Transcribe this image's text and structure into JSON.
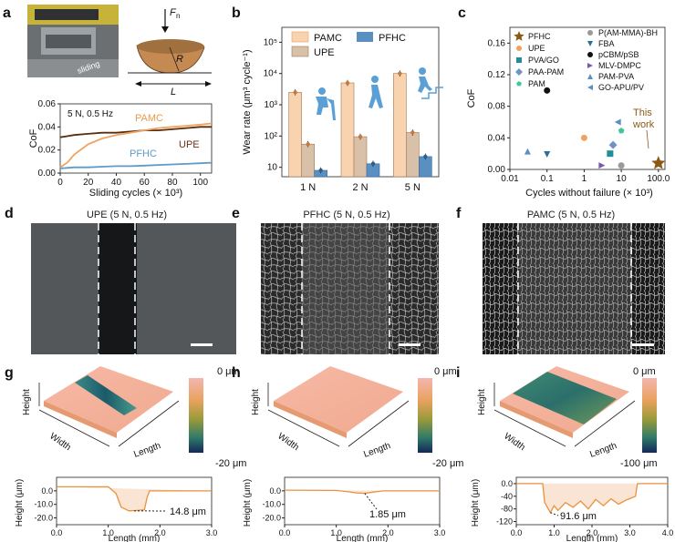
{
  "panels": {
    "a": {
      "letter": "a",
      "force_label": "F",
      "force_sub": "n",
      "radius_label": "R",
      "length_label": "L",
      "photo_label": "sliding",
      "condition": "5 N, 0.5 Hz",
      "ylabel": "CoF",
      "xlabel": "Sliding cycles (× 10³)",
      "xticks": [
        "0",
        "20",
        "40",
        "60",
        "80",
        "100"
      ],
      "yticks": [
        "0.00",
        "0.02",
        "0.04",
        "0.06"
      ],
      "series_labels": {
        "PAMC": "PAMC",
        "UPE": "UPE",
        "PFHC": "PFHC"
      }
    },
    "b": {
      "letter": "b",
      "ylabel": "Wear rate (μm³ cycle⁻¹)",
      "legend": [
        "PAMC",
        "PFHC",
        "UPE"
      ],
      "categories": [
        "1 N",
        "2 N",
        "5 N"
      ],
      "yticks": [
        "10",
        "10²",
        "10³",
        "10⁴",
        "10⁵"
      ]
    },
    "c": {
      "letter": "c",
      "ylabel": "CoF",
      "xlabel": "Cycles without failure (× 10³)",
      "xticks": [
        "0.01",
        "0.1",
        "1",
        "10",
        "100.0"
      ],
      "yticks": [
        "0.00",
        "0.04",
        "0.08",
        "0.12",
        "0.16"
      ],
      "legend_left": [
        "PFHC",
        "UPE",
        "PVA/GO",
        "PAA-PAM",
        "PAM"
      ],
      "legend_right": [
        "P(AM-MMA)-BH",
        "FBA",
        "pCBM/pSB",
        "MLV-DMPC",
        "PAM-PVA",
        "GO-APU/PV"
      ],
      "annotation_line1": "This",
      "annotation_line2": "work"
    },
    "d": {
      "letter": "d",
      "title": "UPE (5 N, 0.5 Hz)"
    },
    "e": {
      "letter": "e",
      "title": "PFHC (5 N, 0.5 Hz)"
    },
    "f": {
      "letter": "f",
      "title": "PAMC (5 N, 0.5 Hz)"
    },
    "g": {
      "letter": "g",
      "height": "Height",
      "width": "Width",
      "length": "Length",
      "cb_top": "0 μm",
      "cb_bottom": "-20 μm",
      "pylabel": "Height (μm)",
      "pxlabel": "Length (mm)",
      "pyticks": [
        "0.0",
        "-10.0",
        "-20.0"
      ],
      "pxticks": [
        "0.0",
        "1.0",
        "2.0",
        "3.0"
      ],
      "depth": "14.8 μm"
    },
    "h": {
      "letter": "h",
      "height": "Height",
      "width": "Width",
      "length": "Length",
      "cb_top": "0 μm",
      "cb_bottom": "-20 μm",
      "pylabel": "Height (μm)",
      "pxlabel": "Length (mm)",
      "pyticks": [
        "0.0",
        "-10.0",
        "-20.0"
      ],
      "pxticks": [
        "0.0",
        "1.0",
        "2.0",
        "3.0"
      ],
      "depth": "1.85 μm"
    },
    "i": {
      "letter": "i",
      "height": "Height",
      "width": "Width",
      "length": "Length",
      "cb_top": "0 μm",
      "cb_bottom": "-100 μm",
      "pylabel": "Height (μm)",
      "pxlabel": "Length (mm)",
      "pyticks": [
        "0.0",
        "-40",
        "-80",
        "-120"
      ],
      "pxticks": [
        "0.0",
        "1.0",
        "2.0",
        "3.0",
        "4.0"
      ],
      "depth": "91.6 μm"
    }
  },
  "chart_data": [
    {
      "type": "line",
      "panel": "a",
      "title": "5 N, 0.5 Hz",
      "xlabel": "Sliding cycles (× 10³)",
      "ylabel": "CoF",
      "xlim": [
        0,
        108
      ],
      "ylim": [
        0,
        0.06
      ],
      "x": [
        0,
        5,
        10,
        20,
        30,
        40,
        50,
        60,
        70,
        80,
        90,
        100,
        108
      ],
      "series": [
        {
          "name": "UPE",
          "color": "#5a2d0c",
          "values": [
            0.031,
            0.032,
            0.033,
            0.034,
            0.035,
            0.035,
            0.036,
            0.037,
            0.037,
            0.038,
            0.039,
            0.04,
            0.04
          ]
        },
        {
          "name": "PAMC",
          "color": "#f0a35e",
          "values": [
            0.005,
            0.009,
            0.016,
            0.025,
            0.03,
            0.033,
            0.035,
            0.037,
            0.039,
            0.04,
            0.041,
            0.042,
            0.043
          ]
        },
        {
          "name": "PFHC",
          "color": "#5d9bc8",
          "values": [
            0.004,
            0.0045,
            0.005,
            0.005,
            0.0055,
            0.006,
            0.006,
            0.0065,
            0.007,
            0.0075,
            0.008,
            0.0085,
            0.009
          ]
        }
      ]
    },
    {
      "type": "bar",
      "panel": "b",
      "ylabel": "Wear rate (μm³ cycle⁻¹)",
      "yscale": "log",
      "ylim": [
        5,
        300000
      ],
      "categories": [
        "1 N",
        "2 N",
        "5 N"
      ],
      "series": [
        {
          "name": "PAMC",
          "color": "#f9d3b0",
          "values": [
            2500,
            5000,
            10000
          ]
        },
        {
          "name": "UPE",
          "color": "#d9c0a9",
          "values": [
            55,
            95,
            130
          ]
        },
        {
          "name": "PFHC",
          "color": "#5a8fc2",
          "values": [
            8,
            13,
            22
          ]
        }
      ]
    },
    {
      "type": "scatter",
      "panel": "c",
      "xlabel": "Cycles without failure (× 10³)",
      "ylabel": "CoF",
      "xscale": "log",
      "xlim": [
        0.01,
        150
      ],
      "ylim": [
        0,
        0.18
      ],
      "series": [
        {
          "name": "PFHC",
          "marker": "star",
          "color": "#8a5a14",
          "points": [
            [
              100,
              0.008
            ]
          ]
        },
        {
          "name": "UPE",
          "marker": "circle",
          "color": "#f0a35e",
          "points": [
            [
              1,
              0.04
            ]
          ]
        },
        {
          "name": "PVA/GO",
          "marker": "square",
          "color": "#1f8f9a",
          "points": [
            [
              5,
              0.02
            ]
          ]
        },
        {
          "name": "PAA-PAM",
          "marker": "diamond",
          "color": "#6f93c8",
          "points": [
            [
              6,
              0.031
            ]
          ]
        },
        {
          "name": "PAM",
          "marker": "pentagon",
          "color": "#43c59b",
          "points": [
            [
              10,
              0.049
            ]
          ]
        },
        {
          "name": "P(AM-MMA)-BH",
          "marker": "circle",
          "color": "#999999",
          "points": [
            [
              10,
              0.005
            ]
          ]
        },
        {
          "name": "FBA",
          "marker": "triangle-down",
          "color": "#2b6f96",
          "points": [
            [
              0.1,
              0.019
            ]
          ]
        },
        {
          "name": "pCBM/pSB",
          "marker": "circle",
          "color": "#111111",
          "points": [
            [
              0.1,
              0.1
            ]
          ]
        },
        {
          "name": "MLV-DMPC",
          "marker": "triangle-right",
          "color": "#7a5aa8",
          "points": [
            [
              3,
              0.005
            ]
          ]
        },
        {
          "name": "PAM-PVA",
          "marker": "triangle-up",
          "color": "#5a8fc2",
          "points": [
            [
              0.03,
              0.023
            ]
          ]
        },
        {
          "name": "GO-APU/PV",
          "marker": "triangle-left",
          "color": "#5a8fc2",
          "points": [
            [
              8,
              0.06
            ]
          ]
        }
      ]
    },
    {
      "type": "line",
      "panel": "g",
      "xlabel": "Length (mm)",
      "ylabel": "Height (μm)",
      "xlim": [
        0,
        3
      ],
      "ylim": [
        -25,
        10
      ],
      "x": [
        0,
        1.0,
        1.15,
        1.25,
        1.4,
        1.55,
        1.7,
        1.75,
        1.8,
        3.0
      ],
      "series": [
        {
          "name": "profile",
          "values": [
            3,
            3,
            -2,
            -12,
            -14.8,
            -14.5,
            -14,
            -5,
            0,
            0
          ]
        }
      ]
    },
    {
      "type": "line",
      "panel": "h",
      "xlabel": "Length (mm)",
      "ylabel": "Height (μm)",
      "xlim": [
        0,
        3
      ],
      "ylim": [
        -25,
        10
      ],
      "x": [
        0,
        1.0,
        1.2,
        1.4,
        1.55,
        1.7,
        1.9,
        3.0
      ],
      "series": [
        {
          "name": "profile",
          "values": [
            0.5,
            0.3,
            -0.5,
            -1.5,
            -1.85,
            -1.0,
            0,
            0
          ]
        }
      ]
    },
    {
      "type": "line",
      "panel": "i",
      "xlabel": "Length (mm)",
      "ylabel": "Height (μm)",
      "xlim": [
        0,
        4
      ],
      "ylim": [
        -130,
        20
      ],
      "x": [
        0,
        0.7,
        0.75,
        0.9,
        1.0,
        1.1,
        1.3,
        1.5,
        1.7,
        1.9,
        2.1,
        2.3,
        2.5,
        2.7,
        2.9,
        3.15,
        3.2,
        4.0
      ],
      "series": [
        {
          "name": "profile",
          "values": [
            0,
            0,
            -60,
            -91.6,
            -70,
            -85,
            -60,
            -75,
            -55,
            -80,
            -50,
            -70,
            -48,
            -65,
            -52,
            -40,
            0,
            0
          ]
        }
      ]
    }
  ]
}
